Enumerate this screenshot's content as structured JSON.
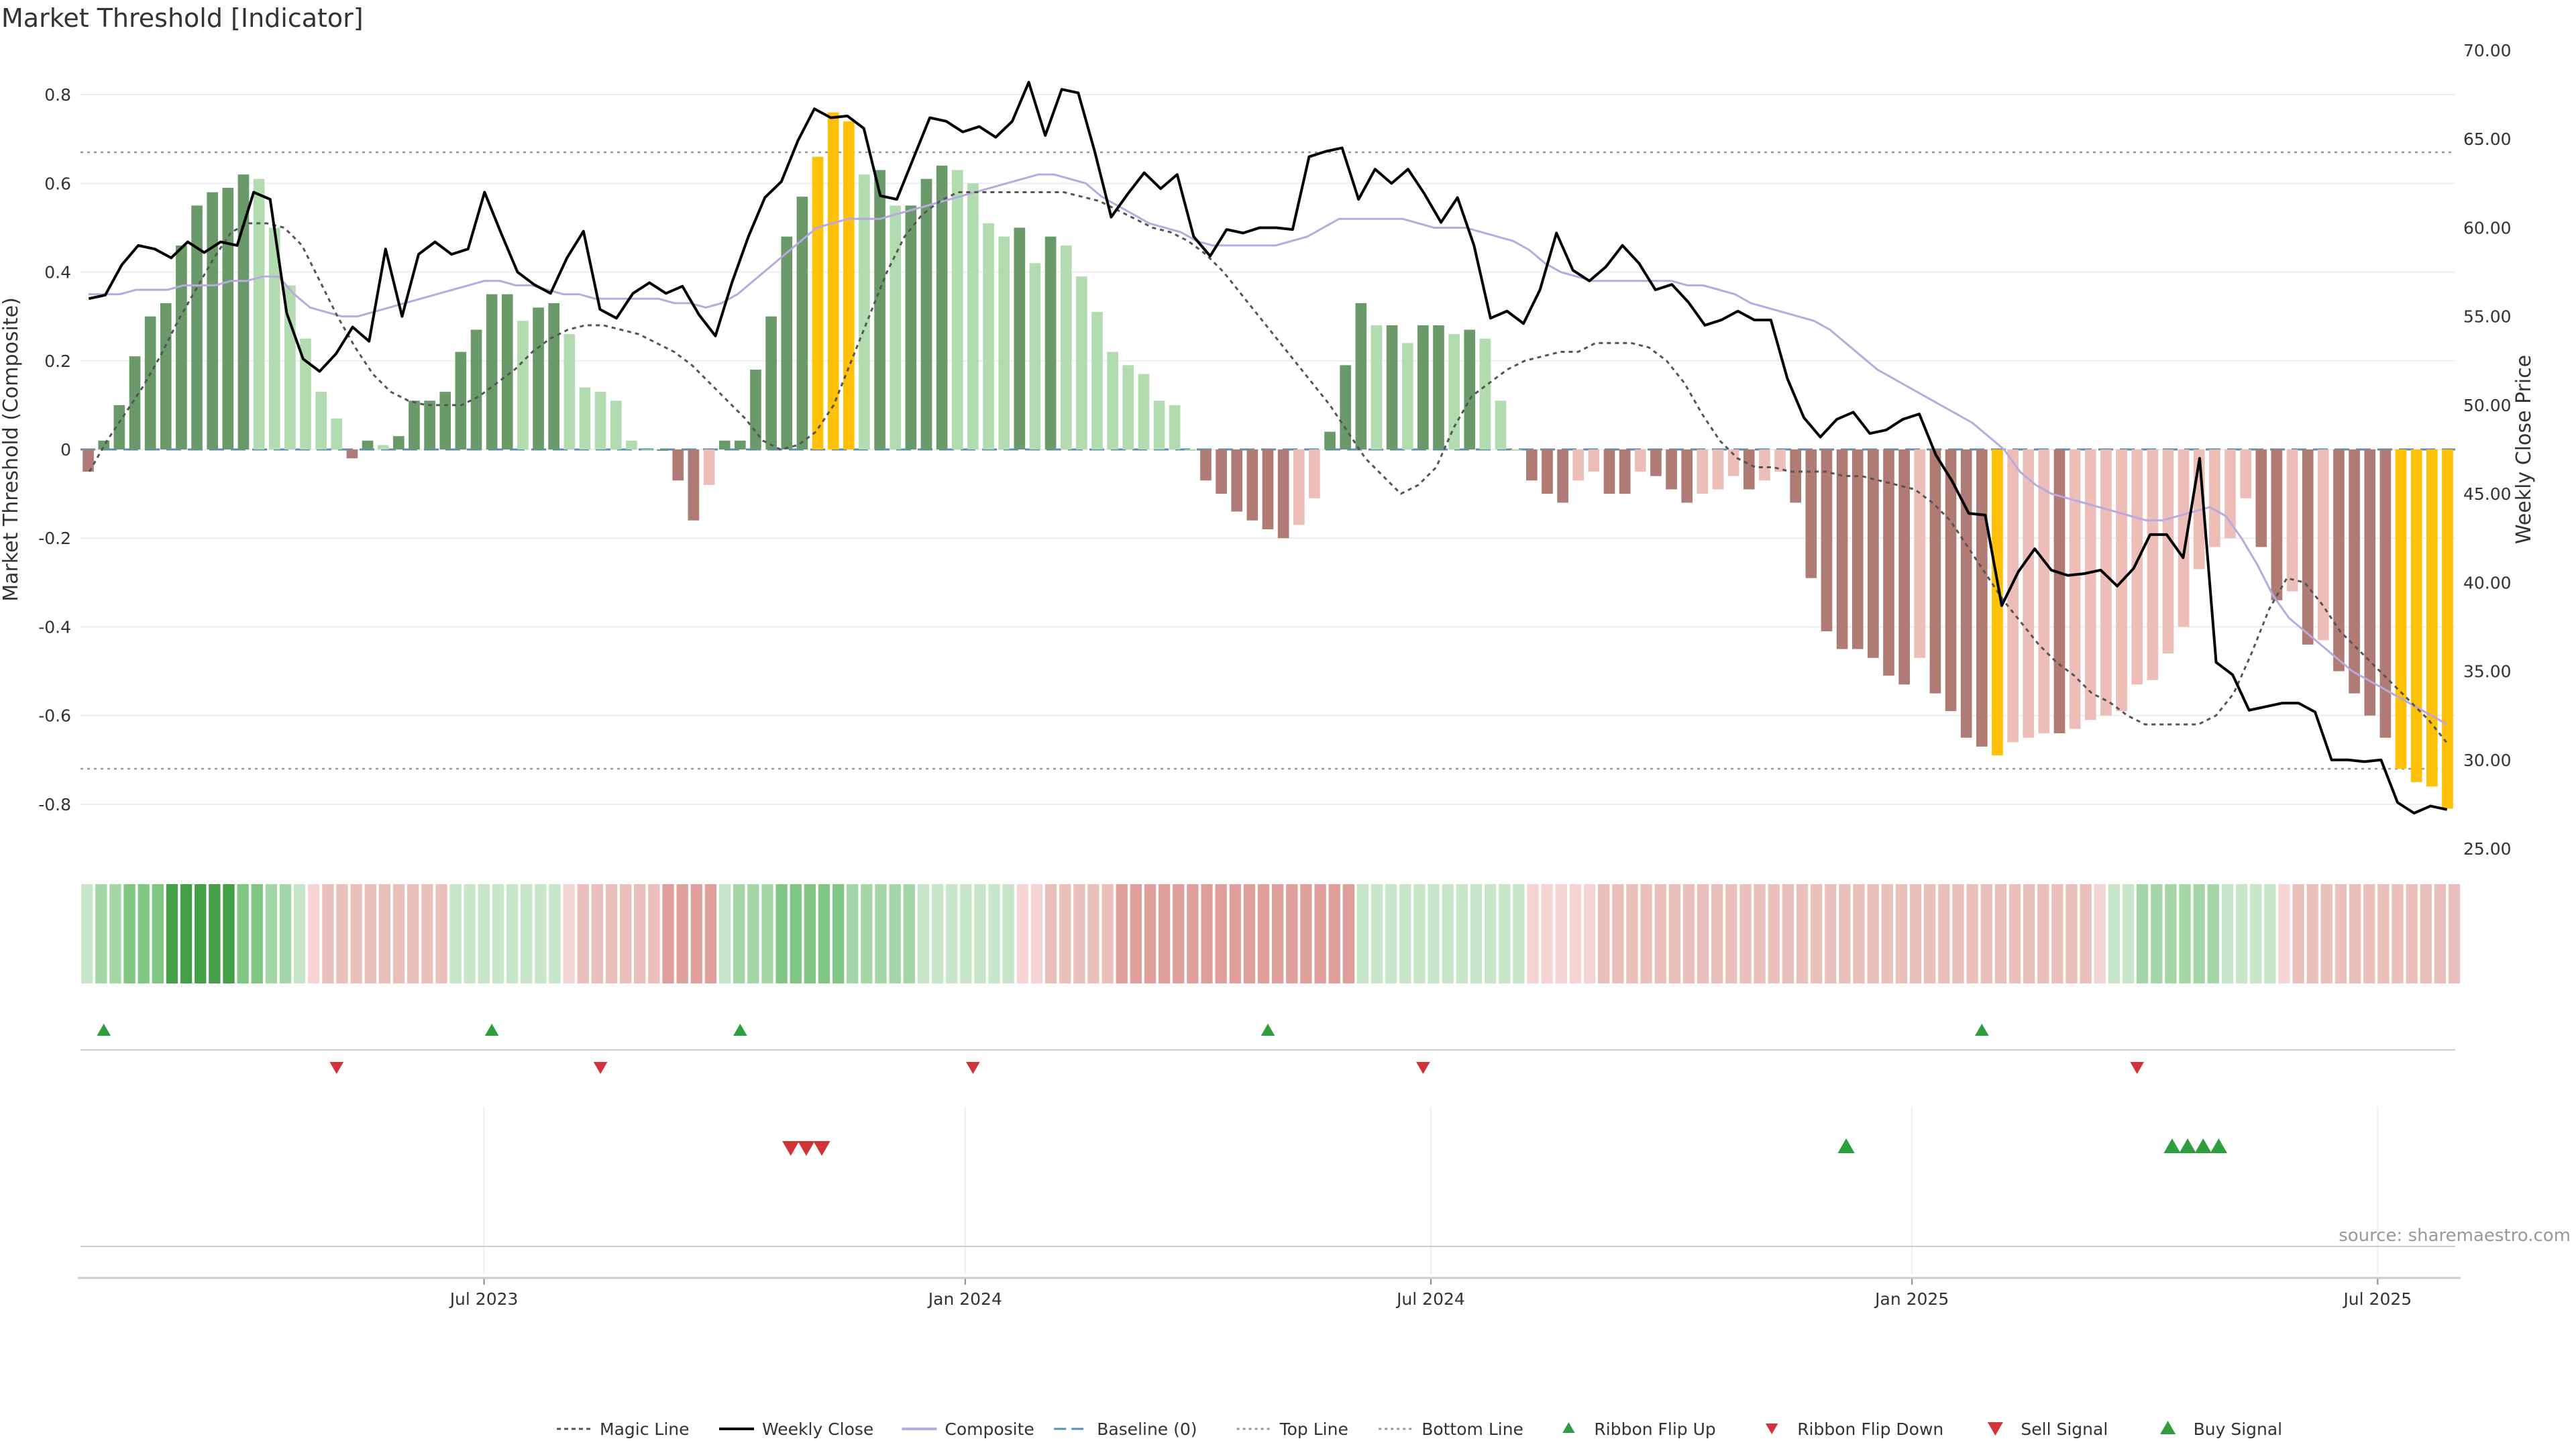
{
  "chart_data": {
    "type": "bar",
    "title": "Market Threshold [Indicator]",
    "ylabel_left": "Market Threshold (Composite)",
    "ylabel_right": "Weekly Close Price",
    "ylim_left": [
      -0.9,
      0.9
    ],
    "ylim_right": [
      25,
      70
    ],
    "yticks_left": [
      "0.8",
      "0.6",
      "0.4",
      "0.2",
      "0",
      "-0.2",
      "-0.4",
      "-0.6",
      "-0.8"
    ],
    "yticks_right": [
      "70.00",
      "65.00",
      "60.00",
      "55.00",
      "50.00",
      "45.00",
      "40.00",
      "35.00",
      "30.00",
      "25.00"
    ],
    "xticks": [
      "Jul 2023",
      "Jan 2024",
      "Jul 2024",
      "Jan 2025",
      "Jul 2025"
    ],
    "top_line": 0.67,
    "bottom_line": -0.72,
    "source": "source: sharemaestro.com",
    "legend": [
      "Magic Line",
      "Weekly Close",
      "Composite",
      "Baseline (0)",
      "Top Line",
      "Bottom Line",
      "Ribbon Flip Up",
      "Ribbon Flip Down",
      "Sell Signal",
      "Buy Signal"
    ],
    "series": [
      {
        "name": "Composite (bars)",
        "values": [
          -0.05,
          0.02,
          0.1,
          0.21,
          0.3,
          0.33,
          0.46,
          0.55,
          0.58,
          0.59,
          0.62,
          0.61,
          0.5,
          0.37,
          0.25,
          0.13,
          0.07,
          -0.02,
          0.02,
          0.01,
          0.03,
          0.11,
          0.11,
          0.13,
          0.22,
          0.27,
          0.35,
          0.35,
          0.29,
          0.32,
          0.33,
          0.26,
          0.14,
          0.13,
          0.11,
          0.02,
          0.0,
          0.0,
          -0.07,
          -0.16,
          -0.08,
          0.02,
          0.02,
          0.18,
          0.3,
          0.48,
          0.57,
          0.66,
          0.76,
          0.74,
          0.62,
          0.63,
          0.55,
          0.55,
          0.61,
          0.64,
          0.63,
          0.6,
          0.51,
          0.48,
          0.5,
          0.42,
          0.48,
          0.46,
          0.39,
          0.31,
          0.22,
          0.19,
          0.17,
          0.11,
          0.1,
          0.0,
          -0.07,
          -0.1,
          -0.14,
          -0.16,
          -0.18,
          -0.2,
          -0.17,
          -0.11,
          0.04,
          0.19,
          0.33,
          0.28,
          0.28,
          0.24,
          0.28,
          0.28,
          0.26,
          0.27,
          0.25,
          0.11,
          0.0,
          -0.07,
          -0.1,
          -0.12,
          -0.07,
          -0.05,
          -0.1,
          -0.1,
          -0.05,
          -0.06,
          -0.09,
          -0.12,
          -0.1,
          -0.09,
          -0.06,
          -0.09,
          -0.07,
          -0.05,
          -0.12,
          -0.29,
          -0.41,
          -0.45,
          -0.45,
          -0.47,
          -0.51,
          -0.53,
          -0.47,
          -0.55,
          -0.59,
          -0.65,
          -0.67,
          -0.69,
          -0.66,
          -0.65,
          -0.64,
          -0.64,
          -0.63,
          -0.61,
          -0.6,
          -0.59,
          -0.53,
          -0.52,
          -0.46,
          -0.4,
          -0.27,
          -0.22,
          -0.2,
          -0.11,
          -0.22,
          -0.34,
          -0.32,
          -0.44,
          -0.43,
          -0.5,
          -0.55,
          -0.6,
          -0.65,
          -0.72,
          -0.75,
          -0.76,
          -0.81
        ],
        "color": "#6a9a6a"
      },
      {
        "name": "Weekly Close",
        "values": [
          56.0,
          56.2,
          57.9,
          59.0,
          58.8,
          58.3,
          59.2,
          58.6,
          59.2,
          59.0,
          62.0,
          61.6,
          55.2,
          52.6,
          51.9,
          52.9,
          54.4,
          53.6,
          58.8,
          55.0,
          58.5,
          59.2,
          58.5,
          58.8,
          62.0,
          59.7,
          57.5,
          56.8,
          56.3,
          58.3,
          59.8,
          55.4,
          54.9,
          56.3,
          56.9,
          56.3,
          56.7,
          55.1,
          53.9,
          56.9,
          59.5,
          61.7,
          62.6,
          64.9,
          66.7,
          66.2,
          66.3,
          65.6,
          61.8,
          61.6,
          63.9,
          66.2,
          66.0,
          65.4,
          65.7,
          65.1,
          66.0,
          68.2,
          65.2,
          67.8,
          67.6,
          64.3,
          60.6,
          61.9,
          63.1,
          62.2,
          63.0,
          59.5,
          58.4,
          59.9,
          59.7,
          60.0,
          60.0,
          59.9,
          64.0,
          64.3,
          64.5,
          61.6,
          63.3,
          62.5,
          63.3,
          61.9,
          60.3,
          61.7,
          59.0,
          54.9,
          55.3,
          54.6,
          56.5,
          59.7,
          57.6,
          57.0,
          57.8,
          59.0,
          58.0,
          56.5,
          56.8,
          55.8,
          54.5,
          54.8,
          55.3,
          54.8,
          54.8,
          51.5,
          49.3,
          48.2,
          49.2,
          49.6,
          48.4,
          48.6,
          49.2,
          49.5,
          47.2,
          45.7,
          43.9,
          43.8,
          38.7,
          40.6,
          41.9,
          40.7,
          40.4,
          40.5,
          40.7,
          39.8,
          40.8,
          42.7,
          42.7,
          41.4,
          47.0,
          35.5,
          34.8,
          32.8,
          33.0,
          33.2,
          33.2,
          32.7,
          30.0,
          30.0,
          29.9,
          30.0,
          27.6,
          27.0,
          27.4,
          27.2
        ],
        "color": "#000000"
      },
      {
        "name": "Composite",
        "values": [
          0.35,
          0.35,
          0.35,
          0.36,
          0.36,
          0.36,
          0.37,
          0.37,
          0.37,
          0.38,
          0.38,
          0.39,
          0.39,
          0.35,
          0.32,
          0.31,
          0.3,
          0.3,
          0.31,
          0.32,
          0.33,
          0.34,
          0.35,
          0.36,
          0.37,
          0.38,
          0.38,
          0.37,
          0.37,
          0.36,
          0.35,
          0.35,
          0.34,
          0.34,
          0.34,
          0.34,
          0.34,
          0.33,
          0.33,
          0.32,
          0.33,
          0.35,
          0.38,
          0.41,
          0.44,
          0.47,
          0.5,
          0.51,
          0.52,
          0.52,
          0.52,
          0.53,
          0.54,
          0.55,
          0.56,
          0.57,
          0.58,
          0.59,
          0.6,
          0.61,
          0.62,
          0.62,
          0.61,
          0.6,
          0.57,
          0.55,
          0.53,
          0.51,
          0.5,
          0.49,
          0.47,
          0.46,
          0.46,
          0.46,
          0.46,
          0.46,
          0.47,
          0.48,
          0.5,
          0.52,
          0.52,
          0.52,
          0.52,
          0.52,
          0.51,
          0.5,
          0.5,
          0.5,
          0.49,
          0.48,
          0.47,
          0.45,
          0.42,
          0.4,
          0.39,
          0.38,
          0.38,
          0.38,
          0.38,
          0.38,
          0.38,
          0.37,
          0.37,
          0.36,
          0.35,
          0.33,
          0.32,
          0.31,
          0.3,
          0.29,
          0.27,
          0.24,
          0.21,
          0.18,
          0.16,
          0.14,
          0.12,
          0.1,
          0.08,
          0.06,
          0.03,
          0.0,
          -0.05,
          -0.08,
          -0.1,
          -0.11,
          -0.12,
          -0.13,
          -0.14,
          -0.15,
          -0.16,
          -0.16,
          -0.15,
          -0.14,
          -0.13,
          -0.15,
          -0.2,
          -0.26,
          -0.33,
          -0.38,
          -0.41,
          -0.44,
          -0.47,
          -0.5,
          -0.52,
          -0.54,
          -0.56,
          -0.58,
          -0.6,
          -0.62
        ],
        "color": "#b8a9e0"
      },
      {
        "name": "Magic Line",
        "values": [
          -0.05,
          0.02,
          0.08,
          0.14,
          0.21,
          0.29,
          0.36,
          0.43,
          0.49,
          0.51,
          0.51,
          0.5,
          0.46,
          0.38,
          0.3,
          0.23,
          0.17,
          0.13,
          0.11,
          0.1,
          0.1,
          0.1,
          0.12,
          0.15,
          0.18,
          0.22,
          0.25,
          0.27,
          0.28,
          0.28,
          0.27,
          0.26,
          0.24,
          0.22,
          0.19,
          0.15,
          0.11,
          0.07,
          0.02,
          0.0,
          0.01,
          0.04,
          0.1,
          0.2,
          0.3,
          0.4,
          0.48,
          0.53,
          0.56,
          0.58,
          0.58,
          0.58,
          0.58,
          0.58,
          0.58,
          0.58,
          0.57,
          0.56,
          0.54,
          0.52,
          0.5,
          0.49,
          0.47,
          0.44,
          0.4,
          0.35,
          0.3,
          0.25,
          0.2,
          0.15,
          0.1,
          0.04,
          -0.02,
          -0.06,
          -0.1,
          -0.08,
          -0.04,
          0.05,
          0.12,
          0.15,
          0.18,
          0.2,
          0.21,
          0.22,
          0.22,
          0.24,
          0.24,
          0.24,
          0.23,
          0.2,
          0.15,
          0.08,
          0.02,
          -0.02,
          -0.04,
          -0.04,
          -0.05,
          -0.05,
          -0.05,
          -0.06,
          -0.06,
          -0.07,
          -0.08,
          -0.09,
          -0.12,
          -0.16,
          -0.22,
          -0.28,
          -0.34,
          -0.39,
          -0.44,
          -0.48,
          -0.51,
          -0.55,
          -0.57,
          -0.6,
          -0.62,
          -0.62,
          -0.62,
          -0.62,
          -0.6,
          -0.55,
          -0.46,
          -0.36,
          -0.29,
          -0.3,
          -0.35,
          -0.41,
          -0.45,
          -0.49,
          -0.53,
          -0.57,
          -0.61,
          -0.66
        ],
        "color": "#555555"
      }
    ],
    "ribbon": [
      1,
      2,
      2,
      3,
      3,
      3,
      4,
      4,
      4,
      4,
      4,
      3,
      3,
      2,
      2,
      1,
      -1,
      -2,
      -2,
      -2,
      -2,
      -2,
      -2,
      -2,
      -2,
      -2,
      1,
      1,
      1,
      1,
      1,
      1,
      1,
      1,
      -1,
      -2,
      -2,
      -2,
      -2,
      -2,
      -2,
      -3,
      -3,
      -3,
      -3,
      1,
      2,
      2,
      2,
      3,
      3,
      3,
      3,
      3,
      2,
      2,
      2,
      2,
      2,
      1,
      1,
      1,
      1,
      1,
      1,
      1,
      -1,
      -1,
      -2,
      -2,
      -2,
      -2,
      -2,
      -3,
      -3,
      -3,
      -3,
      -3,
      -3,
      -3,
      -3,
      -3,
      -3,
      -3,
      -3,
      -3,
      -3,
      -3,
      -3,
      -3,
      1,
      1,
      1,
      1,
      1,
      1,
      1,
      1,
      1,
      1,
      1,
      1,
      -1,
      -1,
      -1,
      -1,
      -1,
      -2,
      -2,
      -2,
      -2,
      -2,
      -2,
      -2,
      -2,
      -2,
      -2,
      -2,
      -2,
      -2,
      -2,
      -2,
      -2,
      -2,
      -2,
      -2,
      -2,
      -2,
      -2,
      -2,
      -2,
      -2,
      -2,
      -2,
      -2,
      -2,
      -2,
      -2,
      -2,
      -2,
      -2,
      -2,
      -1,
      1,
      1,
      2,
      2,
      2,
      2,
      2,
      2,
      1,
      1,
      1,
      1,
      -1,
      -2,
      -2,
      -2,
      -2,
      -2,
      -2,
      -2,
      -2,
      -2,
      -2,
      -2,
      -2
    ],
    "ribbon_flip_up": [
      1,
      26,
      42,
      76,
      122
    ],
    "ribbon_flip_down": [
      16,
      33,
      57,
      86,
      132
    ],
    "sell_signal": [
      45,
      46,
      47
    ],
    "buy_signal": [
      113,
      134,
      135,
      136,
      137
    ]
  }
}
